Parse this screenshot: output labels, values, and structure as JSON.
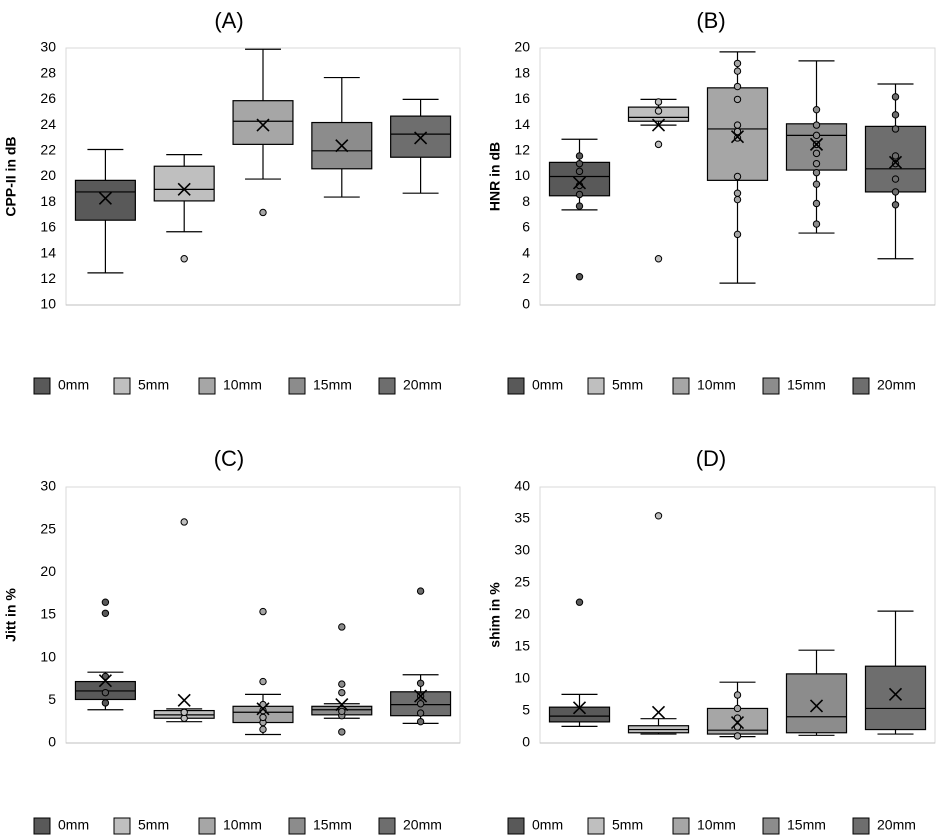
{
  "chart_data": [
    {
      "type": "box",
      "title": "(A)",
      "ylabel": "CPP-II in dB",
      "ylim": [
        10,
        30
      ],
      "yticks": [
        10,
        12,
        14,
        16,
        18,
        20,
        22,
        24,
        26,
        28,
        30
      ],
      "grid": false,
      "legend_position": "bottom",
      "series": [
        {
          "name": "0mm",
          "color": "#595959",
          "min": 12.5,
          "q1": 16.6,
          "median": 18.8,
          "q3": 19.7,
          "max": 22.1,
          "mean": 18.3,
          "points": [],
          "outliers": []
        },
        {
          "name": "5mm",
          "color": "#bfbfbf",
          "min": 15.7,
          "q1": 18.1,
          "median": 19.0,
          "q3": 20.8,
          "max": 21.7,
          "mean": 19.0,
          "points": [],
          "outliers": [
            13.6
          ]
        },
        {
          "name": "10mm",
          "color": "#a6a6a6",
          "min": 19.8,
          "q1": 22.5,
          "median": 24.3,
          "q3": 25.9,
          "max": 29.9,
          "mean": 24.0,
          "points": [],
          "outliers": [
            17.2
          ]
        },
        {
          "name": "15mm",
          "color": "#8c8c8c",
          "min": 18.4,
          "q1": 20.6,
          "median": 22.0,
          "q3": 24.2,
          "max": 27.7,
          "mean": 22.4,
          "points": [],
          "outliers": []
        },
        {
          "name": "20mm",
          "color": "#6e6e6e",
          "min": 18.7,
          "q1": 21.5,
          "median": 23.3,
          "q3": 24.7,
          "max": 26.0,
          "mean": 23.0,
          "points": [],
          "outliers": []
        }
      ]
    },
    {
      "type": "box",
      "title": "(B)",
      "ylabel": "HNR in dB",
      "ylim": [
        0,
        20
      ],
      "yticks": [
        0,
        2,
        4,
        6,
        8,
        10,
        12,
        14,
        16,
        18,
        20
      ],
      "grid": false,
      "legend_position": "bottom",
      "series": [
        {
          "name": "0mm",
          "color": "#595959",
          "min": 7.4,
          "q1": 8.5,
          "median": 10.0,
          "q3": 11.1,
          "max": 12.9,
          "mean": 9.5,
          "points": [
            7.7,
            8.6,
            9.3,
            10.4,
            11.0,
            11.6
          ],
          "outliers": [
            2.2
          ]
        },
        {
          "name": "5mm",
          "color": "#bfbfbf",
          "min": 14.0,
          "q1": 14.3,
          "median": 14.6,
          "q3": 15.4,
          "max": 16.0,
          "mean": 14.0,
          "points": [
            15.1,
            15.8
          ],
          "outliers": [
            12.5,
            3.6
          ]
        },
        {
          "name": "10mm",
          "color": "#a6a6a6",
          "min": 1.7,
          "q1": 9.7,
          "median": 13.7,
          "q3": 16.9,
          "max": 19.7,
          "mean": 13.1,
          "points": [
            5.5,
            8.2,
            8.7,
            10.0,
            13.0,
            13.5,
            14.0,
            16.0,
            17.0,
            18.2,
            18.8
          ],
          "outliers": []
        },
        {
          "name": "15mm",
          "color": "#8c8c8c",
          "min": 5.6,
          "q1": 10.5,
          "median": 13.2,
          "q3": 14.1,
          "max": 19.0,
          "mean": 12.5,
          "points": [
            6.3,
            7.9,
            9.4,
            10.3,
            11.0,
            11.8,
            12.5,
            13.2,
            14.0,
            15.2
          ],
          "outliers": []
        },
        {
          "name": "20mm",
          "color": "#6e6e6e",
          "min": 3.6,
          "q1": 8.8,
          "median": 10.6,
          "q3": 13.9,
          "max": 17.2,
          "mean": 11.1,
          "points": [
            7.8,
            8.8,
            9.8,
            11.0,
            11.6,
            13.7,
            14.8,
            16.2
          ],
          "outliers": []
        }
      ]
    },
    {
      "type": "box",
      "title": "(C)",
      "ylabel": "Jitt in %",
      "ylim": [
        0,
        30
      ],
      "yticks": [
        0,
        5,
        10,
        15,
        20,
        25,
        30
      ],
      "grid": false,
      "legend_position": "bottom",
      "series": [
        {
          "name": "0mm",
          "color": "#595959",
          "min": 3.9,
          "q1": 5.1,
          "median": 6.1,
          "q3": 7.2,
          "max": 8.3,
          "mean": 7.3,
          "points": [
            4.7,
            5.9,
            7.8
          ],
          "outliers": [
            15.2,
            16.5
          ]
        },
        {
          "name": "5mm",
          "color": "#bfbfbf",
          "min": 2.5,
          "q1": 2.9,
          "median": 3.3,
          "q3": 3.8,
          "max": 4.0,
          "mean": 5.0,
          "points": [
            2.9,
            3.6
          ],
          "outliers": [
            25.9
          ]
        },
        {
          "name": "10mm",
          "color": "#a6a6a6",
          "min": 1.0,
          "q1": 2.4,
          "median": 3.6,
          "q3": 4.3,
          "max": 5.7,
          "mean": 4.0,
          "points": [
            1.6,
            2.4,
            3.0,
            3.8,
            4.5
          ],
          "outliers": [
            7.2,
            15.4
          ]
        },
        {
          "name": "15mm",
          "color": "#8c8c8c",
          "min": 2.9,
          "q1": 3.3,
          "median": 3.9,
          "q3": 4.3,
          "max": 4.6,
          "mean": 4.5,
          "points": [
            3.2,
            3.7
          ],
          "outliers": [
            1.3,
            5.9,
            6.9,
            13.6
          ]
        },
        {
          "name": "20mm",
          "color": "#6e6e6e",
          "min": 2.3,
          "q1": 3.2,
          "median": 4.5,
          "q3": 6.0,
          "max": 8.0,
          "mean": 5.5,
          "points": [
            2.5,
            3.5,
            4.6,
            5.5,
            7.0
          ],
          "outliers": [
            17.8
          ]
        }
      ]
    },
    {
      "type": "box",
      "title": "(D)",
      "ylabel": "shim in %",
      "ylim": [
        0,
        40
      ],
      "yticks": [
        0,
        5,
        10,
        15,
        20,
        25,
        30,
        35,
        40
      ],
      "grid": false,
      "legend_position": "bottom",
      "series": [
        {
          "name": "0mm",
          "color": "#595959",
          "min": 2.6,
          "q1": 3.3,
          "median": 4.2,
          "q3": 5.6,
          "max": 7.6,
          "mean": 5.5,
          "points": [],
          "outliers": [
            22.0
          ]
        },
        {
          "name": "5mm",
          "color": "#bfbfbf",
          "min": 1.4,
          "q1": 1.6,
          "median": 2.1,
          "q3": 2.7,
          "max": 3.8,
          "mean": 4.8,
          "points": [],
          "outliers": [
            35.5
          ]
        },
        {
          "name": "10mm",
          "color": "#a6a6a6",
          "min": 1.0,
          "q1": 1.4,
          "median": 2.0,
          "q3": 5.4,
          "max": 9.5,
          "mean": 3.2,
          "points": [
            1.1,
            2.5,
            3.9,
            5.4,
            7.5
          ],
          "outliers": []
        },
        {
          "name": "15mm",
          "color": "#8c8c8c",
          "min": 1.2,
          "q1": 1.6,
          "median": 4.1,
          "q3": 10.8,
          "max": 14.5,
          "mean": 5.8,
          "points": [],
          "outliers": []
        },
        {
          "name": "20mm",
          "color": "#6e6e6e",
          "min": 1.4,
          "q1": 2.1,
          "median": 5.4,
          "q3": 12.0,
          "max": 20.6,
          "mean": 7.6,
          "points": [],
          "outliers": []
        }
      ]
    }
  ]
}
